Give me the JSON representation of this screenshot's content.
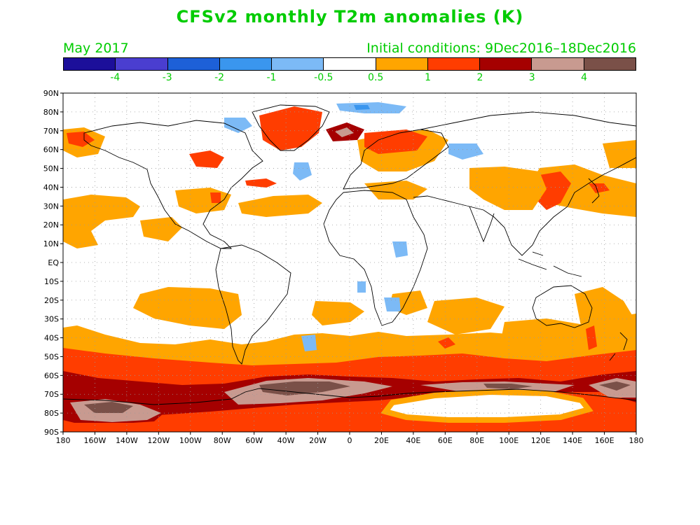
{
  "title": "CFSv2 monthly T2m anomalies (K)",
  "valid_month": "May 2017",
  "initial_conditions": "Initial conditions: 9Dec2016–18Dec2016",
  "colorbar": {
    "colors": [
      "#1c0f9a",
      "#4a3ed0",
      "#1d60d8",
      "#3a96ee",
      "#7cbaf6",
      "#ffffff",
      "#ffa500",
      "#ff3d00",
      "#a50000",
      "#c89a90",
      "#7a5048"
    ],
    "labels": [
      "-4",
      "-3",
      "-2",
      "-1",
      "-0.5",
      "0.5",
      "1",
      "2",
      "3",
      "4"
    ]
  },
  "axes": {
    "lat_labels": [
      "90N",
      "80N",
      "70N",
      "60N",
      "50N",
      "40N",
      "30N",
      "20N",
      "10N",
      "EQ",
      "10S",
      "20S",
      "30S",
      "40S",
      "50S",
      "60S",
      "70S",
      "80S",
      "90S"
    ],
    "lon_labels": [
      "180",
      "160W",
      "140W",
      "120W",
      "100W",
      "80W",
      "60W",
      "40W",
      "20W",
      "0",
      "20E",
      "40E",
      "60E",
      "80E",
      "100E",
      "120E",
      "140E",
      "160E",
      "180"
    ]
  },
  "legend_colors": {
    "land_outline": "#000000",
    "grid": "#9a9a9a",
    "orange": "#ffa500",
    "red": "#ff3d00",
    "darkred": "#a50000",
    "pink": "#c89a90",
    "brown": "#7a5048",
    "lightblue": "#7cbaf6",
    "blue": "#3a96ee"
  }
}
